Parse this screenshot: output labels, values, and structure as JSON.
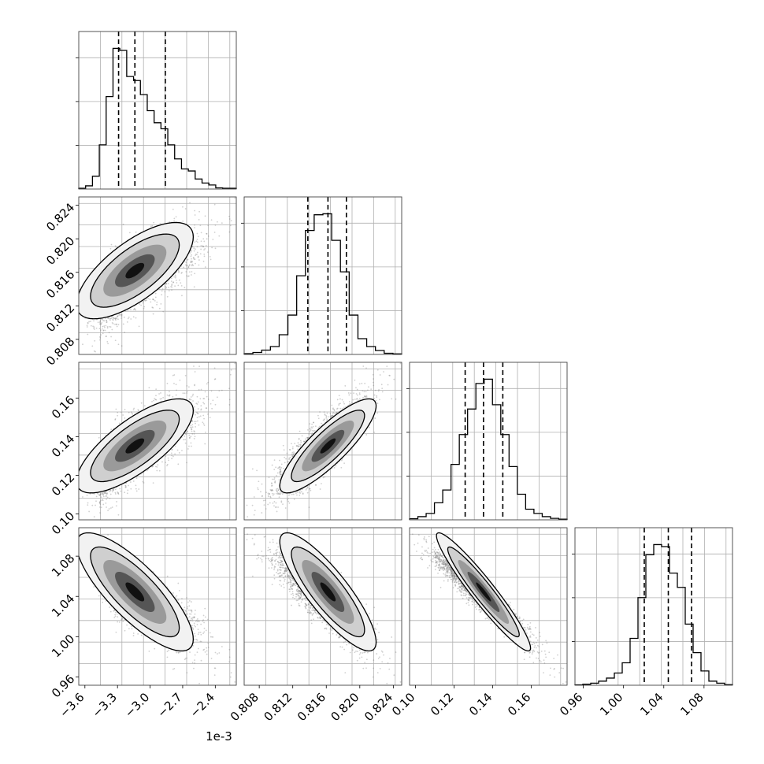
{
  "chart_data": {
    "type": "corner",
    "grid": true,
    "offset_label": "1e-3",
    "params": [
      {
        "range": [
          -3.6566,
          -2.2066
        ],
        "ticks": [
          -3.6,
          -3.3,
          -3.0,
          -2.7,
          -2.4
        ],
        "tick_labels": [
          "−3.6",
          "−3.3",
          "−3.0",
          "−2.7",
          "−2.4"
        ],
        "quantiles": [
          -3.29,
          -3.14,
          -2.86
        ],
        "hist": [
          0.2,
          0.8,
          3.2,
          11.0,
          23.0,
          35.0,
          34.5,
          28.0,
          27.0,
          23.5,
          19.5,
          16.5,
          15.0,
          11.0,
          7.5,
          5.0,
          4.5,
          2.5,
          1.5,
          1.0,
          0.3,
          0.2,
          0.2
        ]
      },
      {
        "range": [
          0.8062,
          0.825
        ],
        "ticks": [
          0.808,
          0.812,
          0.816,
          0.82,
          0.824
        ],
        "tick_labels": [
          "0.808",
          "0.812",
          "0.816",
          "0.820",
          "0.824"
        ],
        "quantiles": [
          0.8138,
          0.8162,
          0.8184
        ],
        "hist": [
          0.4,
          1.0,
          2.2,
          4.0,
          10.0,
          20.0,
          40.0,
          63.0,
          71.0,
          71.5,
          58.0,
          42.0,
          20.0,
          8.0,
          4.0,
          2.0,
          0.6,
          0.3
        ]
      },
      {
        "range": [
          0.0969,
          0.1785
        ],
        "ticks": [
          0.1,
          0.12,
          0.14,
          0.16
        ],
        "tick_labels": [
          "0.10",
          "0.12",
          "0.14",
          "0.16"
        ],
        "quantiles": [
          0.1257,
          0.1352,
          0.1452
        ],
        "hist": [
          0.5,
          1.5,
          3.0,
          8.0,
          14.0,
          26.0,
          40.0,
          52.0,
          64.0,
          66.0,
          54.0,
          40.0,
          25.0,
          12.0,
          5.0,
          3.0,
          1.5,
          0.7,
          0.3
        ]
      },
      {
        "range": [
          0.9517,
          1.1083
        ],
        "ticks": [
          0.96,
          1.0,
          1.04,
          1.08
        ],
        "tick_labels": [
          "0.96",
          "1.00",
          "1.04",
          "1.08"
        ],
        "quantiles": [
          1.0206,
          1.0445,
          1.0676
        ],
        "hist": [
          0.2,
          0.5,
          1.0,
          2.0,
          3.5,
          6.0,
          11.0,
          23.0,
          43.0,
          64.0,
          69.0,
          68.0,
          55.0,
          48.0,
          30.0,
          16.0,
          7.0,
          2.0,
          1.0,
          0.3
        ]
      }
    ],
    "correlations": [
      [
        1.0,
        0.7,
        0.75,
        -0.8
      ],
      [
        0.7,
        1.0,
        0.85,
        -0.85
      ],
      [
        0.75,
        0.85,
        1.0,
        -0.95
      ],
      [
        -0.8,
        -0.85,
        -0.95,
        1.0
      ]
    ]
  }
}
